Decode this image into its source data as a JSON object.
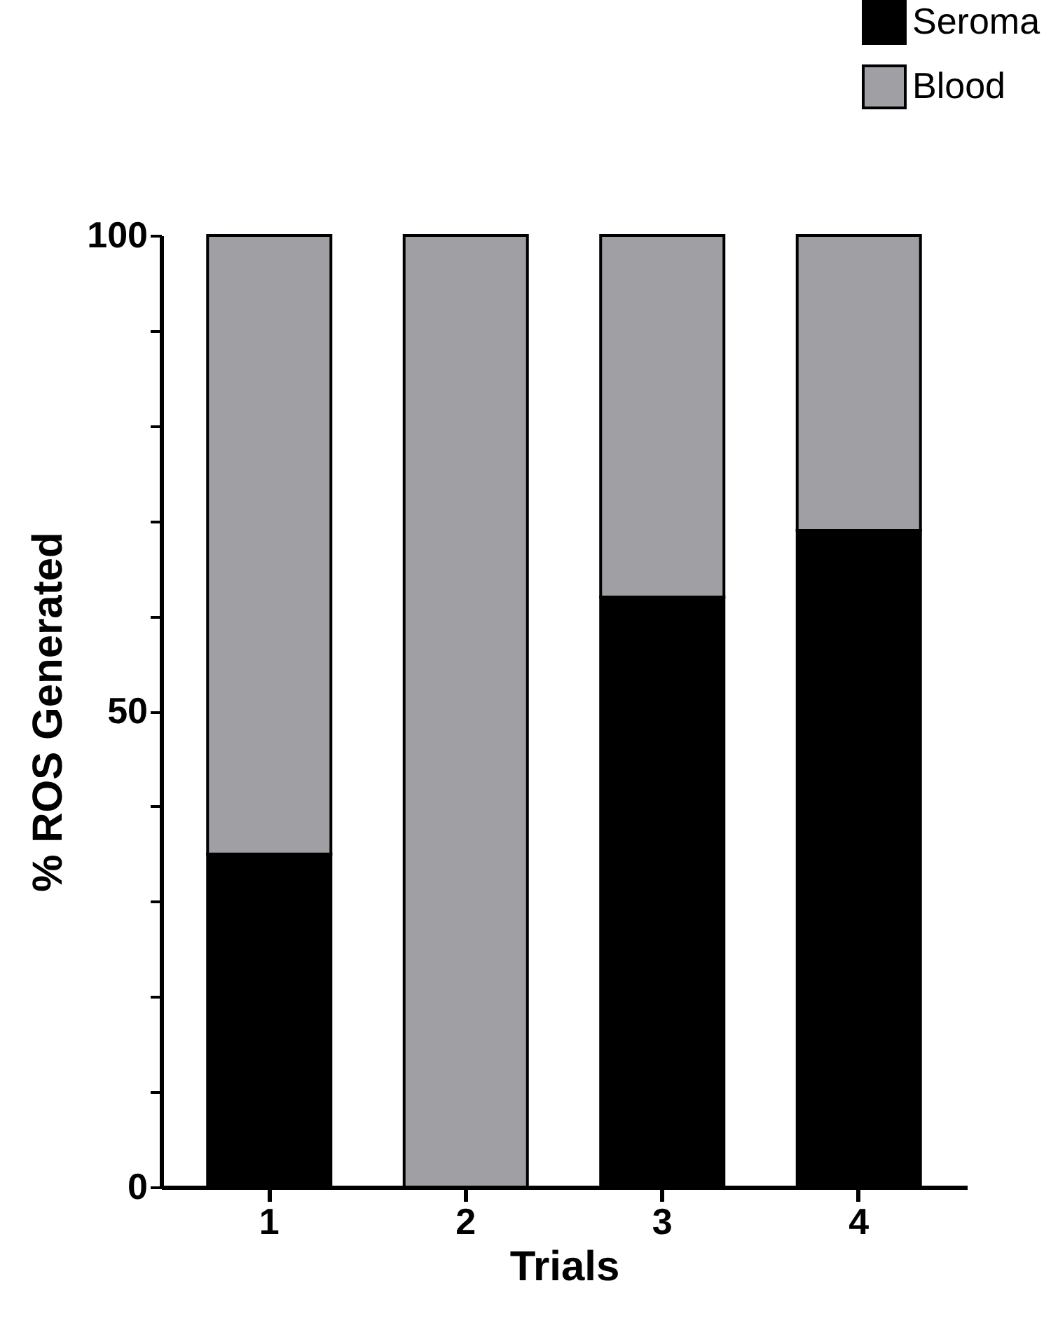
{
  "chart_data": {
    "type": "bar",
    "stacked": true,
    "xlabel": "Trials",
    "ylabel": "% ROS Generated",
    "categories": [
      "1",
      "2",
      "3",
      "4"
    ],
    "series": [
      {
        "name": "Seroma",
        "color": "#000000",
        "values": [
          35,
          0,
          62,
          69
        ]
      },
      {
        "name": "Blood",
        "color": "#a0a0a4",
        "values": [
          65,
          100,
          38,
          31
        ]
      }
    ],
    "ylim": [
      0,
      100
    ],
    "yticks": [
      0,
      {
        "value": 10,
        "label": null
      },
      {
        "value": 20,
        "label": null
      },
      {
        "value": 30,
        "label": null
      },
      {
        "value": 40,
        "label": null
      },
      50,
      {
        "value": 60,
        "label": null
      },
      {
        "value": 70,
        "label": null
      },
      {
        "value": 80,
        "label": null
      },
      {
        "value": 90,
        "label": null
      },
      100
    ],
    "legend": "top right",
    "grid": false
  }
}
